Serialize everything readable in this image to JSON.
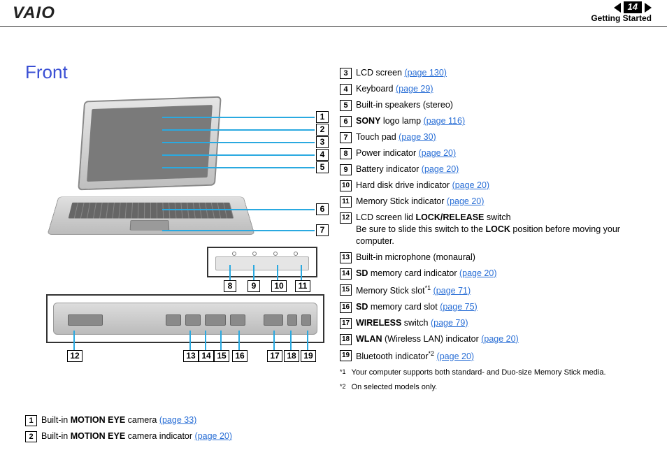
{
  "header": {
    "logo_text": "VAIO",
    "page_number": "14",
    "section": "Getting Started"
  },
  "title": "Front",
  "colors": {
    "title_color": "#3a4fd4",
    "link_color": "#2a6fd6",
    "callout_line_color": "#2aa9e0",
    "box_border": "#000000",
    "background": "#ffffff"
  },
  "diagram": {
    "callout_boxes_right_stack": [
      "1",
      "2",
      "3",
      "4",
      "5",
      "6",
      "7"
    ],
    "callout_boxes_under_small_panel": [
      "8",
      "9",
      "10",
      "11"
    ],
    "callout_boxes_under_large_panel": [
      "12",
      "13",
      "14",
      "15",
      "16",
      "17",
      "18",
      "19"
    ]
  },
  "left_items": [
    {
      "num": "1",
      "parts": [
        {
          "t": "Built-in "
        },
        {
          "t": "MOTION EYE",
          "b": true
        },
        {
          "t": " camera "
        },
        {
          "t": "(page 33)",
          "link": true
        }
      ]
    },
    {
      "num": "2",
      "parts": [
        {
          "t": "Built-in "
        },
        {
          "t": "MOTION EYE",
          "b": true
        },
        {
          "t": " camera indicator "
        },
        {
          "t": "(page 20)",
          "link": true
        }
      ]
    }
  ],
  "right_items": [
    {
      "num": "3",
      "parts": [
        {
          "t": "LCD screen "
        },
        {
          "t": "(page 130)",
          "link": true
        }
      ]
    },
    {
      "num": "4",
      "parts": [
        {
          "t": "Keyboard "
        },
        {
          "t": "(page 29)",
          "link": true
        }
      ]
    },
    {
      "num": "5",
      "parts": [
        {
          "t": "Built-in speakers (stereo)"
        }
      ]
    },
    {
      "num": "6",
      "parts": [
        {
          "t": "SONY",
          "b": true
        },
        {
          "t": " logo lamp "
        },
        {
          "t": "(page 116)",
          "link": true
        }
      ]
    },
    {
      "num": "7",
      "parts": [
        {
          "t": "Touch pad "
        },
        {
          "t": "(page 30)",
          "link": true
        }
      ]
    },
    {
      "num": "8",
      "parts": [
        {
          "t": "Power indicator "
        },
        {
          "t": "(page 20)",
          "link": true
        }
      ]
    },
    {
      "num": "9",
      "parts": [
        {
          "t": "Battery indicator "
        },
        {
          "t": "(page 20)",
          "link": true
        }
      ]
    },
    {
      "num": "10",
      "parts": [
        {
          "t": "Hard disk drive indicator "
        },
        {
          "t": "(page 20)",
          "link": true
        }
      ]
    },
    {
      "num": "11",
      "parts": [
        {
          "t": "Memory Stick indicator "
        },
        {
          "t": "(page 20)",
          "link": true
        }
      ]
    },
    {
      "num": "12",
      "parts": [
        {
          "t": "LCD screen lid "
        },
        {
          "t": "LOCK/RELEASE",
          "b": true
        },
        {
          "t": " switch"
        },
        {
          "br": true
        },
        {
          "t": "Be sure to slide this switch to the "
        },
        {
          "t": "LOCK",
          "b": true
        },
        {
          "t": " position before moving your computer."
        }
      ]
    },
    {
      "num": "13",
      "parts": [
        {
          "t": "Built-in microphone (monaural)"
        }
      ]
    },
    {
      "num": "14",
      "parts": [
        {
          "t": "SD",
          "b": true
        },
        {
          "t": " memory card indicator "
        },
        {
          "t": "(page 20)",
          "link": true
        }
      ]
    },
    {
      "num": "15",
      "parts": [
        {
          "t": "Memory Stick slot"
        },
        {
          "t": "*1",
          "sup": true
        },
        {
          "t": " "
        },
        {
          "t": "(page 71)",
          "link": true
        }
      ]
    },
    {
      "num": "16",
      "parts": [
        {
          "t": "SD",
          "b": true
        },
        {
          "t": " memory card slot "
        },
        {
          "t": "(page 75)",
          "link": true
        }
      ]
    },
    {
      "num": "17",
      "parts": [
        {
          "t": "WIRELESS",
          "b": true
        },
        {
          "t": " switch "
        },
        {
          "t": "(page 79)",
          "link": true
        }
      ]
    },
    {
      "num": "18",
      "parts": [
        {
          "t": "WLAN",
          "b": true
        },
        {
          "t": " (Wireless LAN) indicator "
        },
        {
          "t": "(page 20)",
          "link": true
        }
      ]
    },
    {
      "num": "19",
      "parts": [
        {
          "t": "Bluetooth indicator"
        },
        {
          "t": "*2",
          "sup": true
        },
        {
          "t": " "
        },
        {
          "t": "(page 20)",
          "link": true
        }
      ]
    }
  ],
  "footnotes": [
    {
      "mark": "*1",
      "text": "Your computer supports both standard- and Duo-size Memory Stick media."
    },
    {
      "mark": "*2",
      "text": "On selected models only."
    }
  ]
}
